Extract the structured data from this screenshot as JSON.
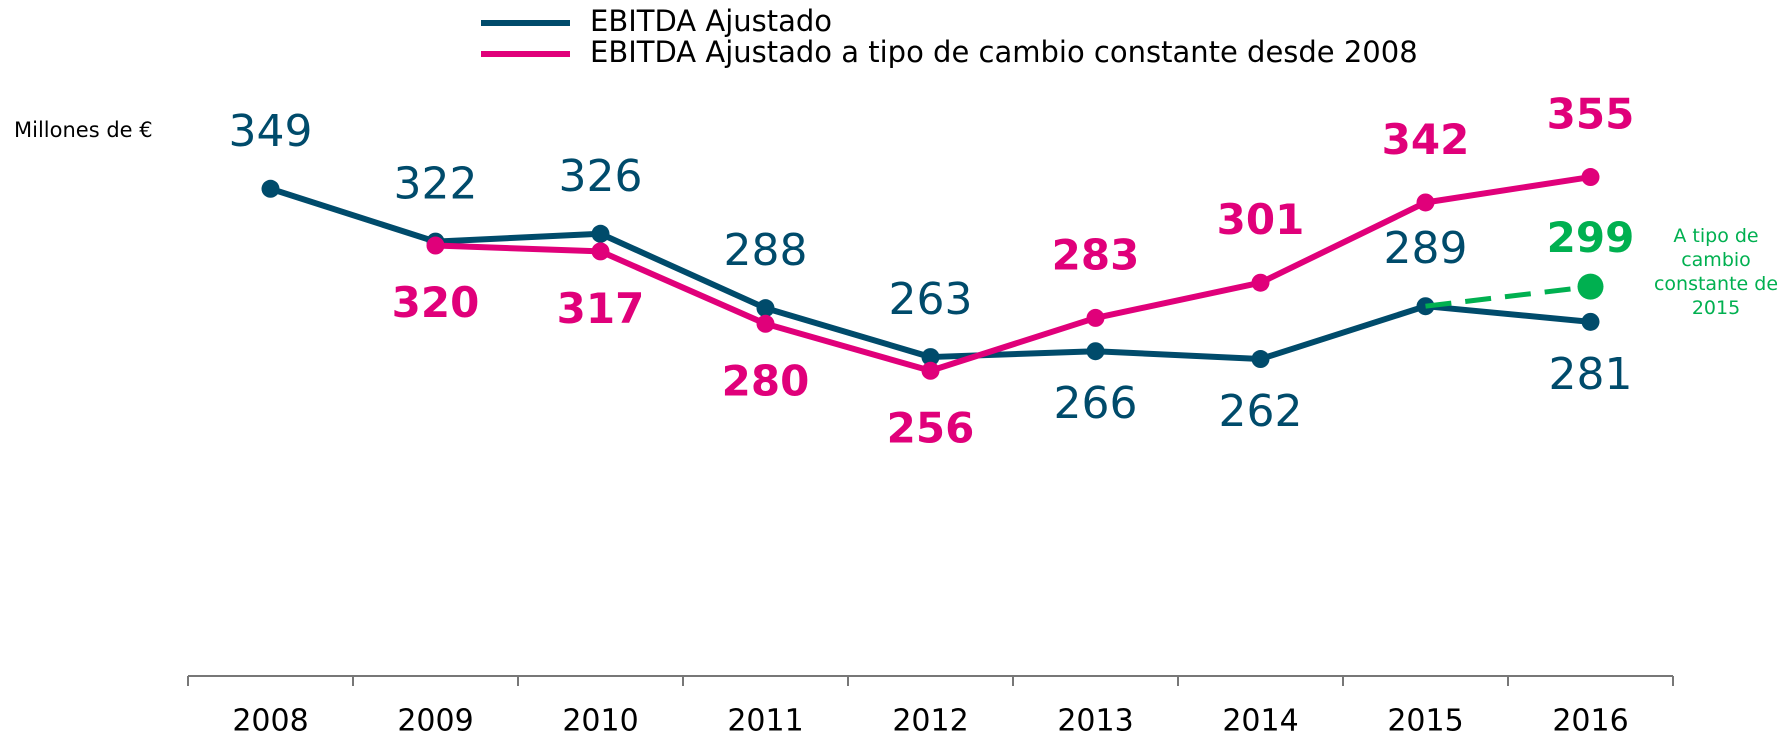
{
  "chart_data": {
    "type": "line",
    "y_label": "Millones de €",
    "categories": [
      "2008",
      "2009",
      "2010",
      "2011",
      "2012",
      "2013",
      "2014",
      "2015",
      "2016"
    ],
    "series": [
      {
        "name": "EBITDA Ajustado",
        "color": "#004b6b",
        "values": [
          349,
          322,
          326,
          288,
          263,
          266,
          262,
          289,
          281
        ]
      },
      {
        "name": "EBITDA Ajustado a tipo de cambio constante desde 2008",
        "color": "#e0007a",
        "values": [
          null,
          320,
          317,
          280,
          256,
          283,
          301,
          342,
          355
        ]
      }
    ],
    "projection": {
      "label": "A tipo de cambio constante de 2015",
      "color": "#00b050",
      "values": [
        null,
        null,
        null,
        null,
        null,
        null,
        null,
        289,
        299
      ]
    },
    "ylim": [
      100,
      400
    ],
    "legend": "top"
  }
}
